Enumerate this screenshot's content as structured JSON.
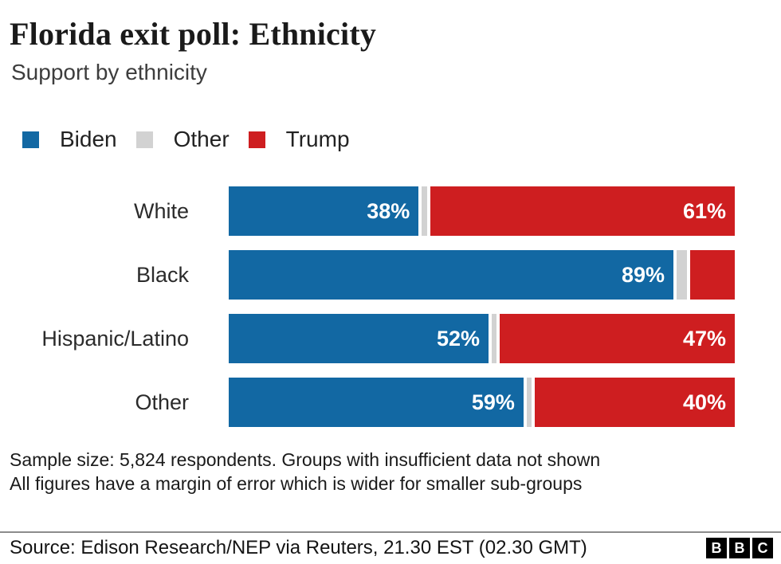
{
  "header": {
    "title": "Florida exit poll: Ethnicity",
    "subtitle": "Support by ethnicity"
  },
  "legend": [
    {
      "label": "Biden",
      "color": "#1268A3"
    },
    {
      "label": "Other",
      "color": "#D2D2D2"
    },
    {
      "label": "Trump",
      "color": "#CE1E20"
    }
  ],
  "chart_data": {
    "type": "bar",
    "stacked": true,
    "orientation": "horizontal",
    "title": "Florida exit poll: Ethnicity",
    "subtitle": "Support by ethnicity",
    "categories": [
      "White",
      "Black",
      "Hispanic/Latino",
      "Other"
    ],
    "series": [
      {
        "name": "Biden",
        "color": "#1268A3",
        "values": [
          38,
          89,
          52,
          59
        ]
      },
      {
        "name": "Other",
        "color": "#D2D2D2",
        "values": [
          1,
          2,
          1,
          1
        ]
      },
      {
        "name": "Trump",
        "color": "#CE1E20",
        "values": [
          61,
          9,
          47,
          40
        ]
      }
    ],
    "value_labels": [
      [
        "38%",
        "",
        "61%"
      ],
      [
        "89%",
        "",
        ""
      ],
      [
        "52%",
        "",
        "47%"
      ],
      [
        "59%",
        "",
        "40%"
      ]
    ],
    "xlim": [
      0,
      100
    ],
    "grid": false,
    "legend_position": "top"
  },
  "footnotes": [
    "Sample size: 5,824 respondents. Groups with insufficient data not shown",
    "All figures have a margin of error which is wider for smaller sub-groups"
  ],
  "source": {
    "text": "Source: Edison Research/NEP via Reuters, 21.30 EST (02.30 GMT)",
    "logo_letters": [
      "B",
      "B",
      "C"
    ]
  }
}
